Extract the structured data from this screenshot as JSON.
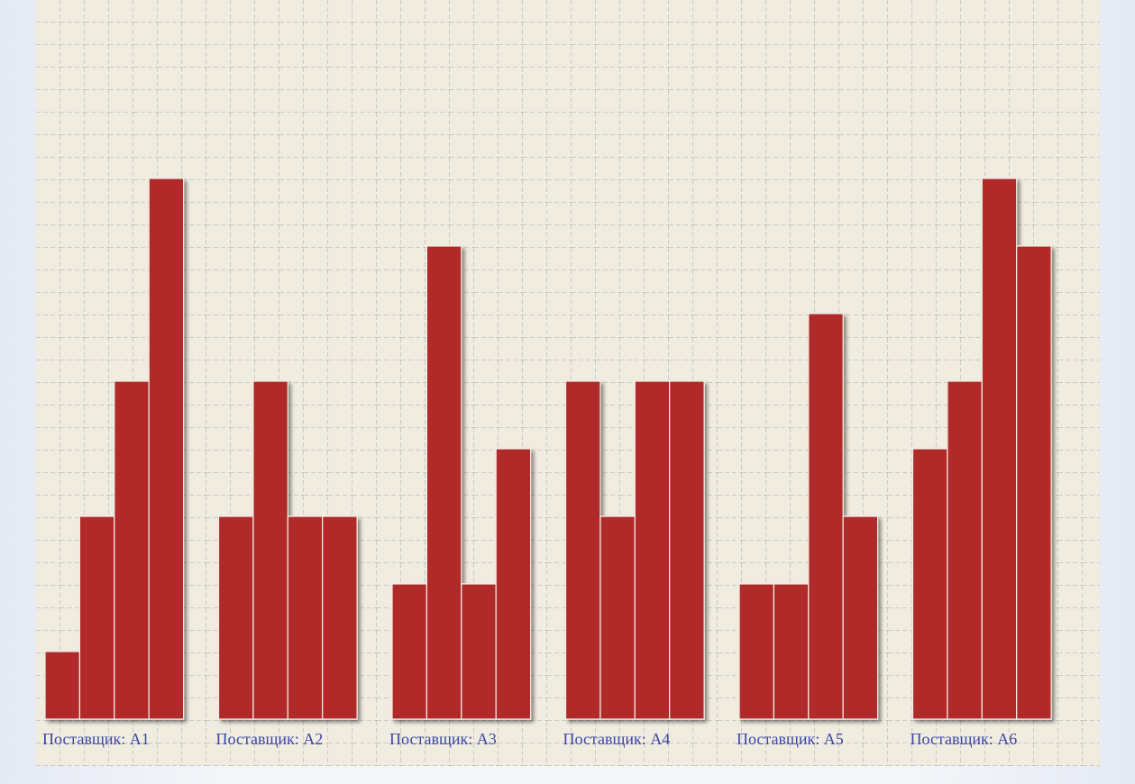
{
  "chart_data": {
    "type": "bar",
    "categories": [
      "Поставщик: A1",
      "Поставщик: A2",
      "Поставщик: A3",
      "Поставщик: A4",
      "Поставщик: A5",
      "Поставщик: A6"
    ],
    "series": [
      {
        "color": "#b02c2c",
        "values": [
          1,
          3,
          2,
          5,
          2,
          4
        ]
      },
      {
        "color": "#b02c2c",
        "values": [
          3,
          5,
          7,
          3,
          2,
          5
        ]
      },
      {
        "color": "#b02c2c",
        "values": [
          5,
          3,
          2,
          5,
          6,
          8
        ]
      },
      {
        "color": "#b02c2c",
        "values": [
          8,
          3,
          4,
          5,
          3,
          7
        ]
      }
    ],
    "ylim": [
      0,
      8
    ]
  }
}
